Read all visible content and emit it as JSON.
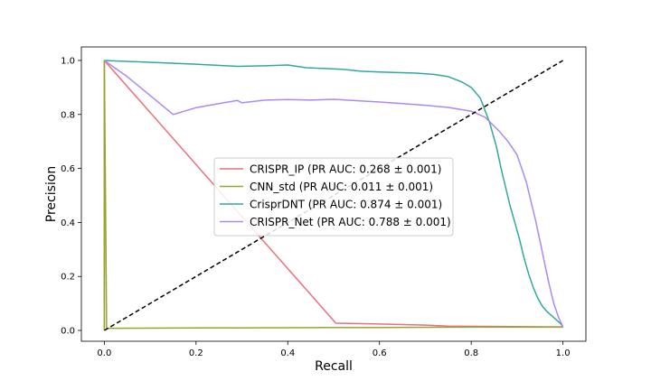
{
  "chart_data": {
    "type": "line",
    "title": "",
    "xlabel": "Recall",
    "ylabel": "Precision",
    "xlim": [
      -0.05,
      1.05
    ],
    "ylim": [
      -0.04,
      1.05
    ],
    "xticks": [
      "0.0",
      "0.2",
      "0.4",
      "0.6",
      "0.8",
      "1.0"
    ],
    "yticks": [
      "0.0",
      "0.2",
      "0.4",
      "0.6",
      "0.8",
      "1.0"
    ],
    "grid": false,
    "legend_position": "center",
    "series": [
      {
        "name": "CRISPR_IP (PR AUC: 0.268 ± 0.001)",
        "color": "#e8707f",
        "x": [
          0.0,
          0.0,
          0.505,
          0.6,
          0.7,
          0.75,
          0.85,
          1.0
        ],
        "y": [
          0.013,
          1.0,
          0.027,
          0.024,
          0.02,
          0.016,
          0.015,
          0.013
        ]
      },
      {
        "name": "CNN_std (PR AUC: 0.011 ± 0.001)",
        "color": "#97a431",
        "x": [
          0.0,
          0.0,
          0.005,
          0.2,
          0.4,
          0.6,
          0.8,
          1.0
        ],
        "y": [
          0.0,
          1.0,
          0.008,
          0.009,
          0.01,
          0.011,
          0.012,
          0.012
        ]
      },
      {
        "name": "CrisprDNT (PR AUC: 0.874 ± 0.001)",
        "color": "#31a89e",
        "x": [
          0.0,
          0.1,
          0.2,
          0.29,
          0.35,
          0.4,
          0.44,
          0.48,
          0.52,
          0.56,
          0.6,
          0.64,
          0.68,
          0.72,
          0.75,
          0.78,
          0.8,
          0.82,
          0.84,
          0.855,
          0.865,
          0.875,
          0.885,
          0.895,
          0.905,
          0.915,
          0.925,
          0.935,
          0.945,
          0.955,
          0.965,
          0.975,
          0.985,
          0.995,
          1.0
        ],
        "y": [
          1.0,
          0.993,
          0.986,
          0.978,
          0.98,
          0.983,
          0.973,
          0.97,
          0.967,
          0.96,
          0.957,
          0.955,
          0.953,
          0.948,
          0.94,
          0.92,
          0.9,
          0.86,
          0.77,
          0.68,
          0.6,
          0.53,
          0.46,
          0.4,
          0.34,
          0.27,
          0.21,
          0.16,
          0.12,
          0.09,
          0.07,
          0.055,
          0.04,
          0.025,
          0.013
        ]
      },
      {
        "name": "CRISPR_Net (PR AUC: 0.788 ± 0.001)",
        "color": "#a98af0",
        "x": [
          0.0,
          0.05,
          0.1,
          0.15,
          0.2,
          0.25,
          0.29,
          0.3,
          0.35,
          0.4,
          0.45,
          0.5,
          0.55,
          0.6,
          0.65,
          0.7,
          0.75,
          0.8,
          0.83,
          0.86,
          0.88,
          0.9,
          0.91,
          0.92,
          0.93,
          0.94,
          0.95,
          0.96,
          0.97,
          0.98,
          0.99,
          1.0
        ],
        "y": [
          1.0,
          0.94,
          0.87,
          0.8,
          0.825,
          0.84,
          0.852,
          0.843,
          0.853,
          0.855,
          0.853,
          0.856,
          0.851,
          0.846,
          0.84,
          0.834,
          0.826,
          0.812,
          0.79,
          0.74,
          0.7,
          0.65,
          0.6,
          0.55,
          0.48,
          0.41,
          0.33,
          0.25,
          0.17,
          0.1,
          0.05,
          0.013
        ]
      },
      {
        "name": "",
        "color": "#000000",
        "dashed": true,
        "x": [
          0.0,
          1.0
        ],
        "y": [
          0.0,
          1.0
        ]
      }
    ]
  }
}
